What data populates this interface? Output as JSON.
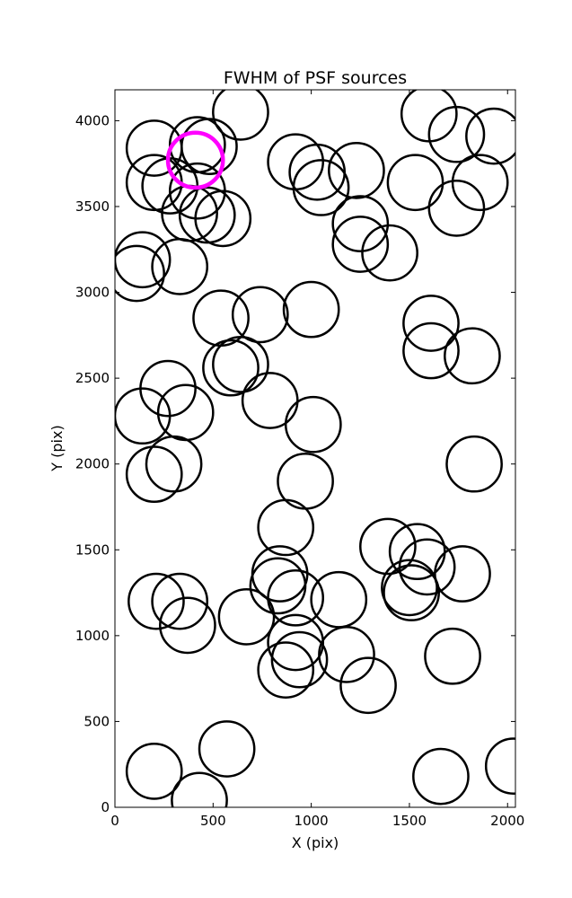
{
  "chart_data": {
    "type": "scatter",
    "title": "FWHM of PSF sources",
    "xlabel": "X (pix)",
    "ylabel": "Y (pix)",
    "xlim": [
      0,
      2040
    ],
    "ylim": [
      0,
      4180
    ],
    "xticks": [
      0,
      500,
      1000,
      1500,
      2000
    ],
    "yticks": [
      0,
      500,
      1000,
      1500,
      2000,
      2500,
      3000,
      3500,
      4000
    ],
    "marker": "open-circle",
    "marker_radius": 140,
    "grid": false,
    "series": [
      {
        "color": "#000000",
        "points": [
          [
            640,
            4050
          ],
          [
            1600,
            4040
          ],
          [
            1740,
            3920
          ],
          [
            1930,
            3910
          ],
          [
            200,
            3840
          ],
          [
            420,
            3860
          ],
          [
            480,
            3850
          ],
          [
            200,
            3640
          ],
          [
            280,
            3620
          ],
          [
            420,
            3590
          ],
          [
            380,
            3460
          ],
          [
            470,
            3450
          ],
          [
            550,
            3430
          ],
          [
            920,
            3760
          ],
          [
            1030,
            3700
          ],
          [
            1050,
            3610
          ],
          [
            1230,
            3710
          ],
          [
            1250,
            3400
          ],
          [
            1250,
            3280
          ],
          [
            1400,
            3230
          ],
          [
            1530,
            3640
          ],
          [
            1740,
            3490
          ],
          [
            1860,
            3640
          ],
          [
            140,
            3190
          ],
          [
            110,
            3110
          ],
          [
            330,
            3150
          ],
          [
            540,
            2850
          ],
          [
            740,
            2870
          ],
          [
            1000,
            2900
          ],
          [
            590,
            2560
          ],
          [
            640,
            2580
          ],
          [
            790,
            2370
          ],
          [
            1010,
            2230
          ],
          [
            1610,
            2820
          ],
          [
            1610,
            2660
          ],
          [
            1820,
            2630
          ],
          [
            270,
            2440
          ],
          [
            360,
            2300
          ],
          [
            140,
            2280
          ],
          [
            300,
            2000
          ],
          [
            200,
            1940
          ],
          [
            970,
            1900
          ],
          [
            1830,
            2000
          ],
          [
            870,
            1630
          ],
          [
            1390,
            1520
          ],
          [
            1540,
            1490
          ],
          [
            1590,
            1400
          ],
          [
            1770,
            1360
          ],
          [
            1500,
            1280
          ],
          [
            1510,
            1250
          ],
          [
            840,
            1360
          ],
          [
            830,
            1290
          ],
          [
            920,
            1220
          ],
          [
            1140,
            1210
          ],
          [
            210,
            1200
          ],
          [
            330,
            1200
          ],
          [
            370,
            1060
          ],
          [
            670,
            1110
          ],
          [
            920,
            960
          ],
          [
            940,
            860
          ],
          [
            870,
            800
          ],
          [
            1180,
            890
          ],
          [
            1290,
            710
          ],
          [
            1720,
            880
          ],
          [
            200,
            210
          ],
          [
            430,
            40
          ],
          [
            570,
            340
          ],
          [
            1660,
            180
          ],
          [
            2030,
            240
          ]
        ]
      },
      {
        "color": "#ff00ff",
        "highlighted": true,
        "points": [
          [
            410,
            3770
          ]
        ]
      }
    ]
  }
}
